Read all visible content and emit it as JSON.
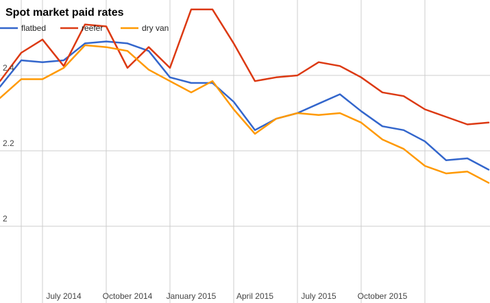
{
  "chart_data": {
    "type": "line",
    "title": "Spot market paid rates",
    "xlabel": "",
    "ylabel": "",
    "x": [
      "2014-03",
      "2014-04",
      "2014-05",
      "2014-06",
      "2014-07",
      "2014-08",
      "2014-09",
      "2014-10",
      "2014-11",
      "2014-12",
      "2015-01",
      "2015-02",
      "2015-03",
      "2015-04",
      "2015-05",
      "2015-06",
      "2015-07",
      "2015-08",
      "2015-09",
      "2015-10",
      "2015-11",
      "2015-12",
      "2016-01",
      "2016-02"
    ],
    "x_tick_labels": [
      "July 2014",
      "October 2014",
      "January 2015",
      "April 2015",
      "July 2015",
      "October 2015"
    ],
    "y_tick_labels": [
      "2",
      "2.2",
      "2.4"
    ],
    "ylim": [
      1.86,
      2.6
    ],
    "grid": true,
    "legend_position": "top-left",
    "series": [
      {
        "name": "flatbed",
        "color": "#3366cc",
        "values": [
          2.37,
          2.44,
          2.435,
          2.44,
          2.485,
          2.49,
          2.485,
          2.465,
          2.395,
          2.38,
          2.38,
          2.33,
          2.255,
          2.285,
          2.3,
          2.325,
          2.35,
          2.305,
          2.265,
          2.255,
          2.225,
          2.175,
          2.18,
          2.15
        ]
      },
      {
        "name": "reefer",
        "color": "#dc3912",
        "values": [
          2.385,
          2.46,
          2.495,
          2.425,
          2.535,
          2.53,
          2.42,
          2.475,
          2.42,
          2.575,
          2.575,
          2.485,
          2.385,
          2.395,
          2.4,
          2.435,
          2.425,
          2.395,
          2.355,
          2.345,
          2.31,
          2.29,
          2.27,
          2.275
        ]
      },
      {
        "name": "dry van",
        "color": "#ff9900",
        "values": [
          2.34,
          2.39,
          2.39,
          2.42,
          2.48,
          2.475,
          2.465,
          2.415,
          2.385,
          2.355,
          2.385,
          2.31,
          2.245,
          2.285,
          2.3,
          2.295,
          2.3,
          2.275,
          2.23,
          2.205,
          2.16,
          2.14,
          2.145,
          2.115
        ]
      }
    ]
  }
}
